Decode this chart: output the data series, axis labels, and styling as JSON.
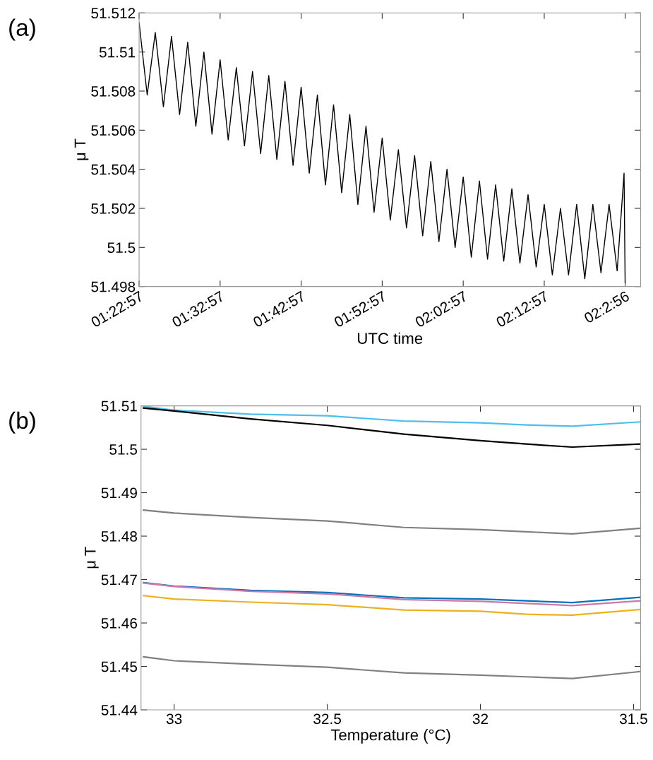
{
  "chart_data": [
    {
      "type": "line",
      "xlabel": "UTC time",
      "ylabel": "μ T",
      "annotations": [
        "(a)"
      ],
      "xlim": [
        1.3825,
        2.414
      ],
      "xticks": [
        {
          "value": 1.3825,
          "label": "01:22:57"
        },
        {
          "value": 1.54917,
          "label": "01:32:57"
        },
        {
          "value": 1.71583,
          "label": "01:42:57"
        },
        {
          "value": 1.8825,
          "label": "01:52:57"
        },
        {
          "value": 2.04917,
          "label": "02:02:57"
        },
        {
          "value": 2.21583,
          "label": "02:12:57"
        },
        {
          "value": 2.38222,
          "label": "02:2:56"
        }
      ],
      "ylim": [
        51.498,
        51.512
      ],
      "yticks": [
        51.498,
        51.5,
        51.502,
        51.504,
        51.506,
        51.508,
        51.51,
        51.512
      ],
      "x": [
        1.3825,
        1.3992,
        1.4158,
        1.4325,
        1.4492,
        1.4658,
        1.4825,
        1.4992,
        1.5158,
        1.5325,
        1.5492,
        1.5658,
        1.5825,
        1.5992,
        1.6158,
        1.6325,
        1.6492,
        1.6658,
        1.6825,
        1.6992,
        1.7158,
        1.7325,
        1.7492,
        1.7658,
        1.7825,
        1.7992,
        1.8158,
        1.8325,
        1.8492,
        1.8658,
        1.8825,
        1.8992,
        1.9158,
        1.9325,
        1.9492,
        1.9658,
        1.9825,
        1.9992,
        2.0158,
        2.0325,
        2.0492,
        2.0658,
        2.0825,
        2.0992,
        2.1158,
        2.1325,
        2.1492,
        2.1658,
        2.1825,
        2.1992,
        2.2158,
        2.2325,
        2.2492,
        2.2658,
        2.2825,
        2.2992,
        2.3158,
        2.3325,
        2.3492,
        2.3658,
        2.38,
        2.3822
      ],
      "series": [
        {
          "color": "#000000",
          "values": [
            51.5115,
            51.5078,
            51.511,
            51.5072,
            51.5108,
            51.5068,
            51.5105,
            51.5062,
            51.51,
            51.5058,
            51.5096,
            51.5055,
            51.5092,
            51.5052,
            51.509,
            51.5048,
            51.5088,
            51.5045,
            51.5085,
            51.5042,
            51.5082,
            51.5038,
            51.5078,
            51.5032,
            51.5073,
            51.5028,
            51.5068,
            51.5022,
            51.5062,
            51.5018,
            51.5056,
            51.5014,
            51.505,
            51.501,
            51.5047,
            51.5006,
            51.5044,
            51.5003,
            51.504,
            51.5,
            51.5036,
            51.4995,
            51.5034,
            51.4994,
            51.5032,
            51.4993,
            51.503,
            51.4992,
            51.5027,
            51.499,
            51.5022,
            51.4986,
            51.502,
            51.4986,
            51.5022,
            51.4984,
            51.5022,
            51.4987,
            51.5022,
            51.4988,
            51.5038,
            51.4982
          ]
        }
      ]
    },
    {
      "type": "line",
      "xlabel": "Temperature (°C)",
      "ylabel": "μ T",
      "annotations": [
        "(b)"
      ],
      "xlim": [
        33.108,
        31.477
      ],
      "xticks": [
        33,
        32.5,
        32,
        31.5
      ],
      "ylim": [
        51.44,
        51.51
      ],
      "yticks": [
        51.44,
        51.45,
        51.46,
        51.47,
        51.48,
        51.49,
        51.5,
        51.51
      ],
      "x": [
        33.1,
        33.0,
        32.75,
        32.5,
        32.25,
        32.0,
        31.85,
        31.7,
        31.48
      ],
      "series": [
        {
          "color": "#4dbeee",
          "values": [
            51.5099,
            51.509,
            51.5081,
            51.5077,
            51.5065,
            51.5061,
            51.5056,
            51.5053,
            51.5063
          ]
        },
        {
          "color": "#000000",
          "values": [
            51.5095,
            51.5088,
            51.507,
            51.5055,
            51.5035,
            51.502,
            51.5012,
            51.5005,
            51.5012
          ]
        },
        {
          "color": "#808080",
          "values": [
            51.486,
            51.4853,
            51.4843,
            51.4835,
            51.482,
            51.4815,
            51.481,
            51.4805,
            51.4818
          ]
        },
        {
          "color": "#0072bd",
          "values": [
            51.4693,
            51.4685,
            51.4675,
            51.467,
            51.4658,
            51.4655,
            51.4651,
            51.4647,
            51.4659
          ]
        },
        {
          "color": "#cc79a7",
          "values": [
            51.4692,
            51.4684,
            51.4673,
            51.4667,
            51.4654,
            51.465,
            51.4645,
            51.464,
            51.4651
          ]
        },
        {
          "color": "#edb120",
          "values": [
            51.4663,
            51.4655,
            51.4648,
            51.4642,
            51.463,
            51.4627,
            51.462,
            51.4618,
            51.4631
          ]
        },
        {
          "color": "#808080",
          "values": [
            51.4522,
            51.4513,
            51.4505,
            51.4498,
            51.4485,
            51.448,
            51.4476,
            51.4472,
            51.4488
          ]
        }
      ]
    }
  ]
}
